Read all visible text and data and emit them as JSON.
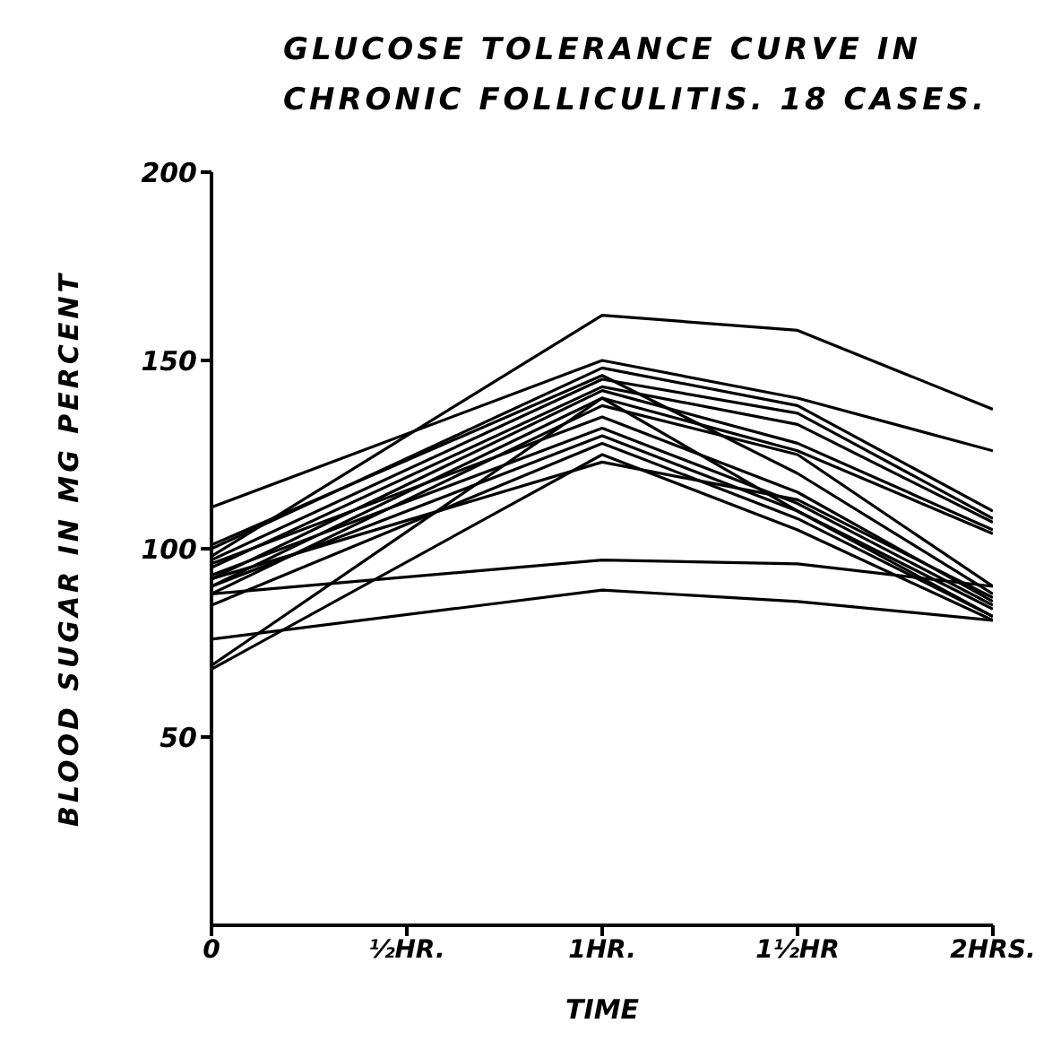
{
  "chart_data": {
    "type": "line",
    "title": "GLUCOSE TOLERANCE CURVE IN CHRONIC FOLLICULITIS. 18 CASES.",
    "xlabel": "TIME",
    "ylabel": "BLOOD SUGAR IN MG PERCENT",
    "x": [
      0,
      1,
      1.5,
      2
    ],
    "xlim": [
      0,
      2
    ],
    "xticks": [
      0,
      {
        "value": 0.5,
        "label": "½HR."
      },
      {
        "value": 1,
        "label": "1HR."
      },
      {
        "value": 1.5,
        "label": "1½HR"
      },
      {
        "value": 2,
        "label": "2HRS."
      }
    ],
    "ylim": [
      0,
      200
    ],
    "yticks": [
      50,
      100,
      150,
      200
    ],
    "grid": false,
    "marker": "none",
    "line_style": "solid",
    "series": [
      {
        "color": "#000000",
        "values": [
          98,
          162,
          158,
          137
        ]
      },
      {
        "color": "#000000",
        "values": [
          111,
          150,
          140,
          126
        ]
      },
      {
        "color": "#000000",
        "values": [
          100,
          148,
          138,
          110
        ]
      },
      {
        "color": "#000000",
        "values": [
          97,
          145,
          136,
          108
        ]
      },
      {
        "color": "#000000",
        "values": [
          95,
          143,
          133,
          107
        ]
      },
      {
        "color": "#000000",
        "values": [
          92,
          142,
          128,
          105
        ]
      },
      {
        "color": "#000000",
        "values": [
          90,
          140,
          126,
          104
        ]
      },
      {
        "color": "#000000",
        "values": [
          88,
          138,
          125,
          90
        ]
      },
      {
        "color": "#000000",
        "values": [
          101,
          146,
          120,
          88
        ]
      },
      {
        "color": "#000000",
        "values": [
          96,
          135,
          115,
          86
        ]
      },
      {
        "color": "#000000",
        "values": [
          93,
          132,
          112,
          85
        ]
      },
      {
        "color": "#000000",
        "values": [
          90,
          130,
          110,
          84
        ]
      },
      {
        "color": "#000000",
        "values": [
          85,
          128,
          108,
          82
        ]
      },
      {
        "color": "#000000",
        "values": [
          69,
          140,
          110,
          82
        ]
      },
      {
        "color": "#000000",
        "values": [
          68,
          125,
          105,
          81
        ]
      },
      {
        "color": "#000000",
        "values": [
          88,
          97,
          96,
          90
        ]
      },
      {
        "color": "#000000",
        "values": [
          76,
          89,
          86,
          81
        ]
      },
      {
        "color": "#000000",
        "values": [
          92,
          123,
          113,
          87
        ]
      }
    ]
  }
}
